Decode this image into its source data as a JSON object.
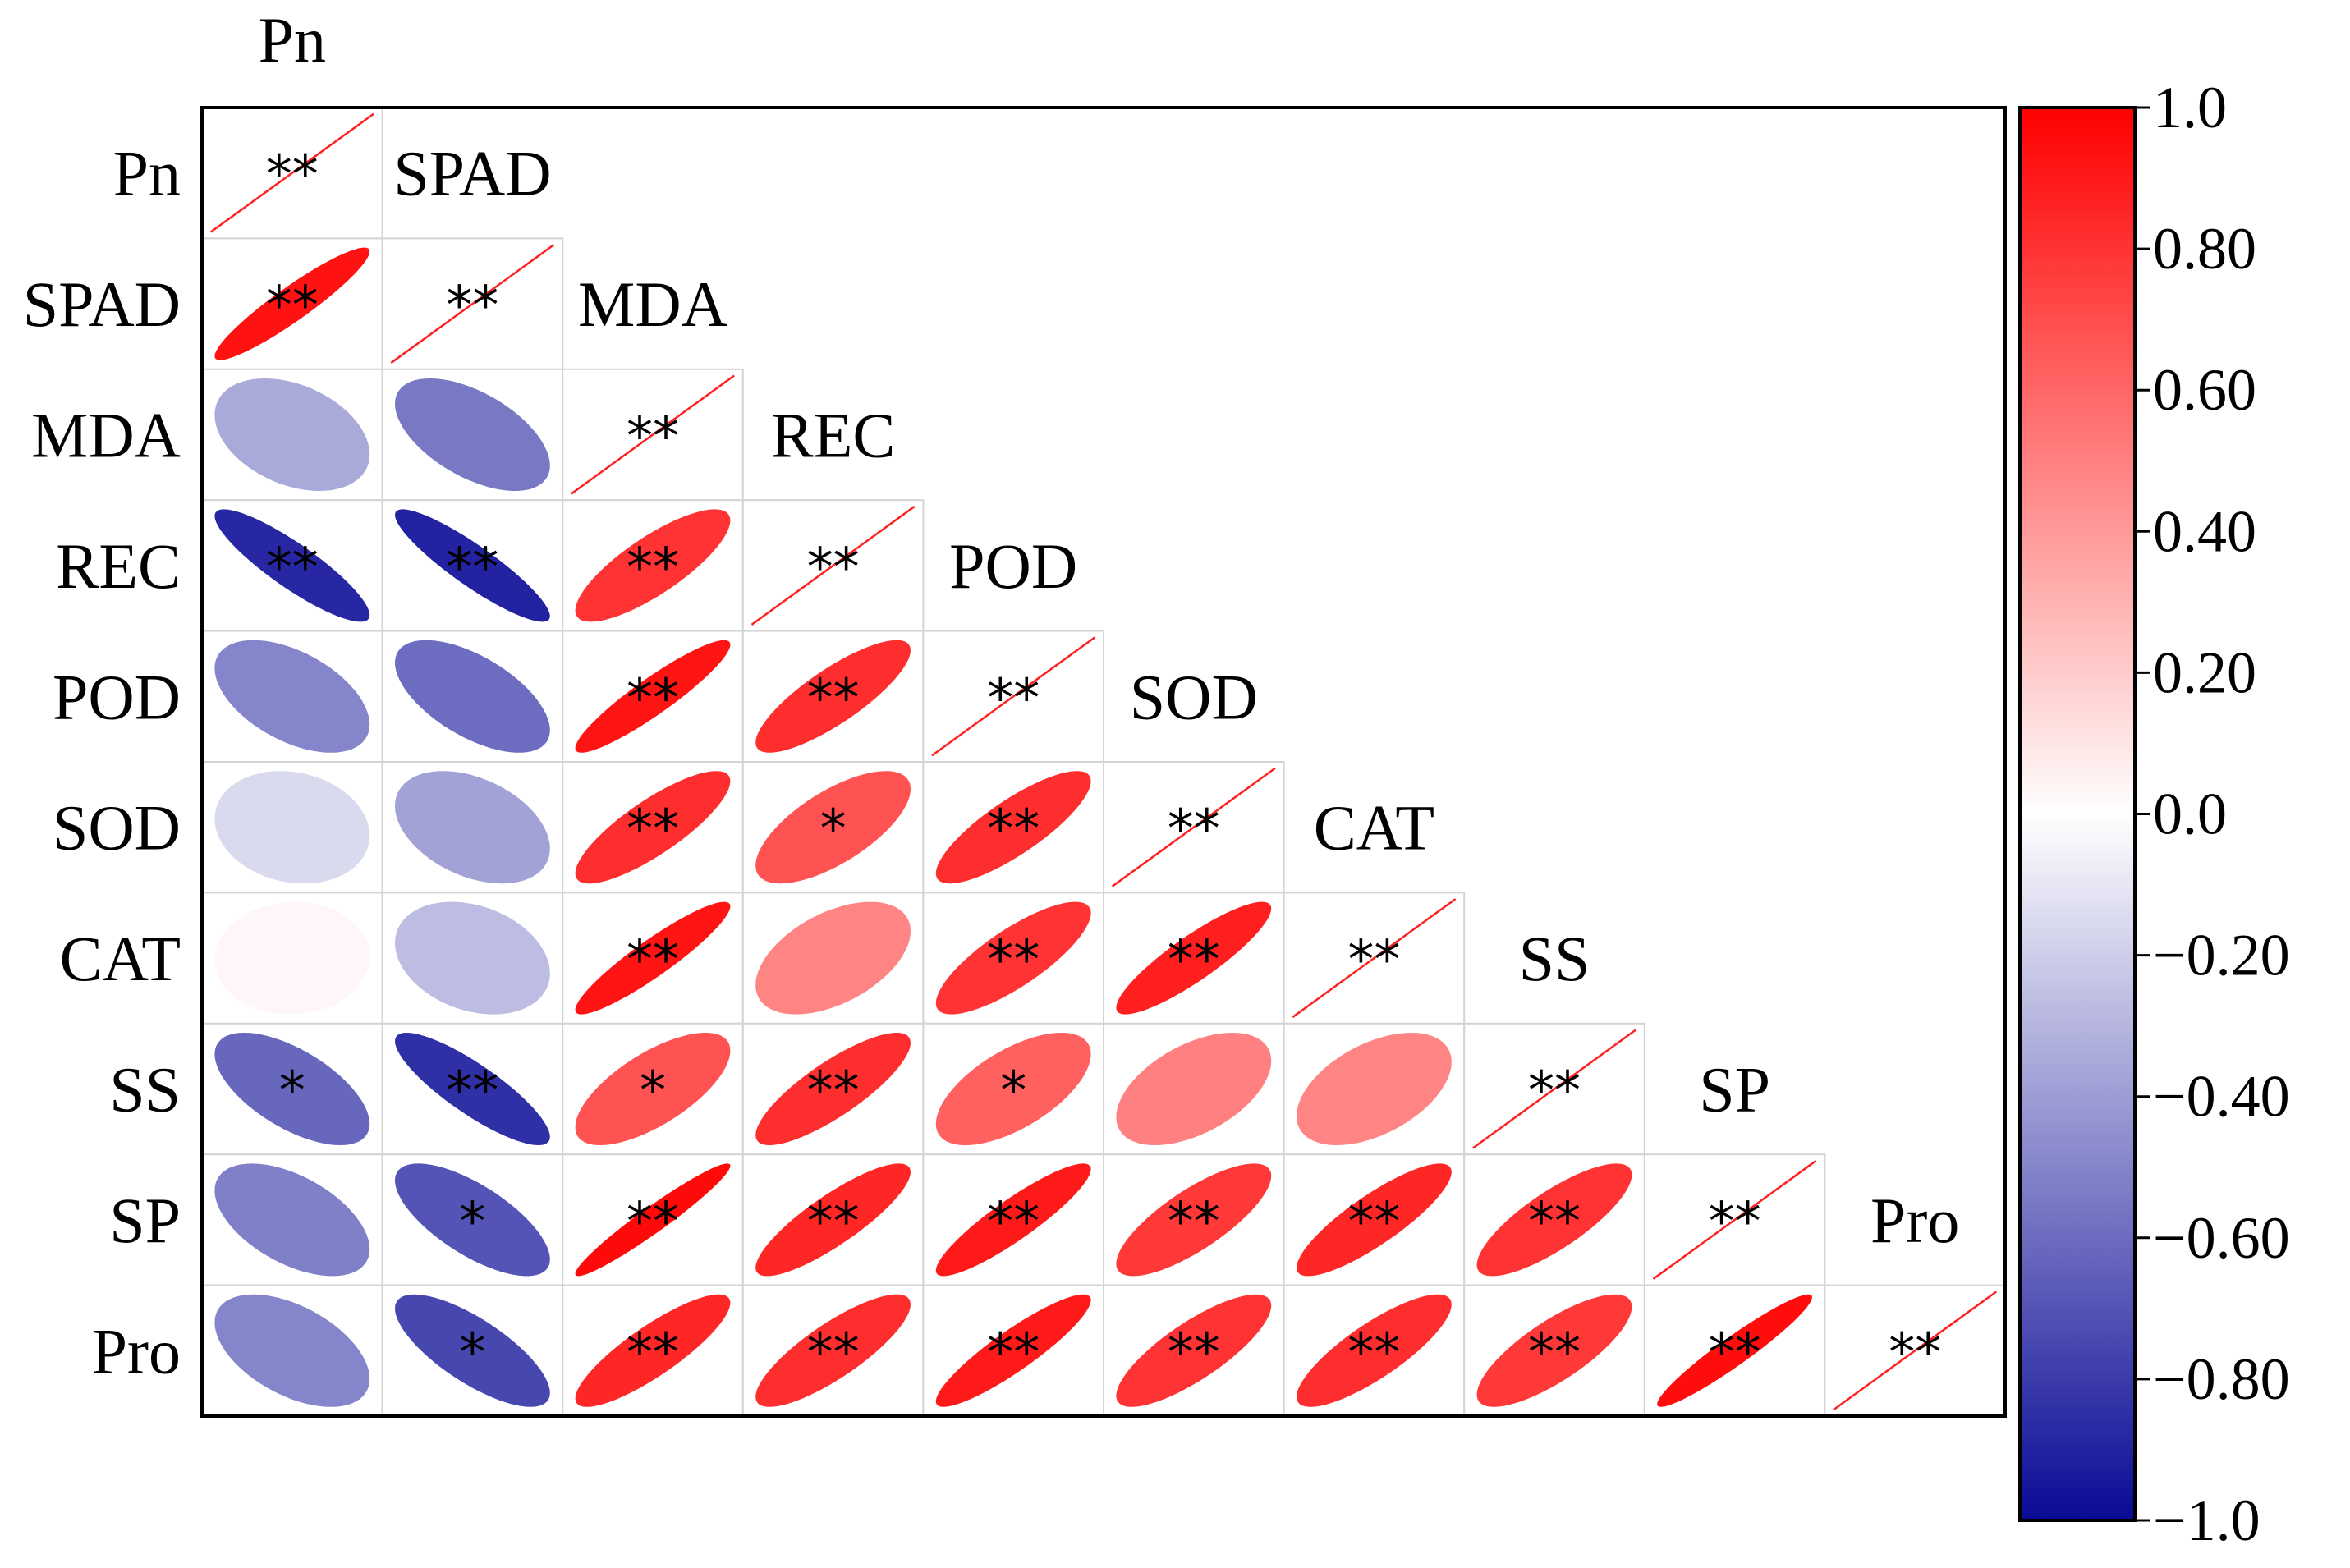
{
  "chart_data": {
    "type": "heatmap",
    "subtype": "correlation-ellipse-lower-triangle",
    "variables": [
      "Pn",
      "SPAD",
      "MDA",
      "REC",
      "POD",
      "SOD",
      "CAT",
      "SS",
      "SP",
      "Pro"
    ],
    "correlations": [
      [
        1.0
      ],
      [
        0.93,
        1.0
      ],
      [
        -0.35,
        -0.55,
        1.0
      ],
      [
        -0.88,
        -0.9,
        0.8,
        1.0
      ],
      [
        -0.5,
        -0.6,
        0.92,
        0.82,
        1.0
      ],
      [
        -0.15,
        -0.38,
        0.82,
        0.68,
        0.82,
        1.0
      ],
      [
        0.03,
        -0.27,
        0.92,
        0.48,
        0.8,
        0.88,
        1.0
      ],
      [
        -0.62,
        -0.85,
        0.68,
        0.82,
        0.62,
        0.5,
        0.48,
        1.0
      ],
      [
        -0.52,
        -0.7,
        0.96,
        0.85,
        0.9,
        0.78,
        0.85,
        0.8,
        1.0
      ],
      [
        -0.5,
        -0.75,
        0.85,
        0.82,
        0.9,
        0.8,
        0.82,
        0.78,
        0.95,
        1.0
      ]
    ],
    "significance": [
      [
        "**"
      ],
      [
        "**",
        "**"
      ],
      [
        "",
        "",
        "**"
      ],
      [
        "**",
        "**",
        "**",
        "**"
      ],
      [
        "",
        "",
        "**",
        "**",
        "**"
      ],
      [
        "",
        "",
        "**",
        "*",
        "**",
        "**"
      ],
      [
        "",
        "",
        "**",
        "",
        "**",
        "**",
        "**"
      ],
      [
        "*",
        "**",
        "*",
        "**",
        "*",
        "",
        "",
        "**"
      ],
      [
        "",
        "*",
        "**",
        "**",
        "**",
        "**",
        "**",
        "**",
        "**"
      ],
      [
        "",
        "*",
        "**",
        "**",
        "**",
        "**",
        "**",
        "**",
        "**",
        "**"
      ]
    ],
    "colorbar": {
      "range": [
        -1.0,
        1.0
      ],
      "tick_values": [
        1.0,
        0.8,
        0.6,
        0.4,
        0.2,
        0.0,
        -0.2,
        -0.4,
        -0.6,
        -0.8,
        -1.0
      ],
      "tick_labels": [
        "1.0",
        "0.80",
        "0.60",
        "0.40",
        "0.20",
        "0.0",
        "−0.20",
        "−0.40",
        "−0.60",
        "−0.80",
        "−1.0"
      ],
      "colors": {
        "negative": "#0a0a96",
        "zero": "#ffffff",
        "positive": "#ff0000"
      }
    },
    "legend_placement": "right"
  }
}
